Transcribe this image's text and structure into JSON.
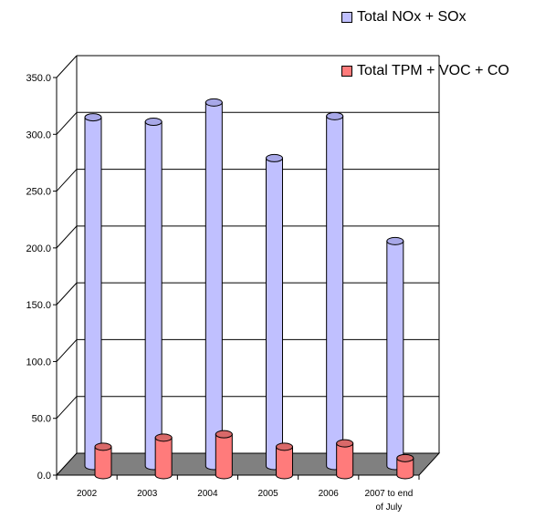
{
  "chart_data": {
    "type": "bar",
    "categories": [
      "2002",
      "2003",
      "2004",
      "2005",
      "2006",
      "2007 to end of July"
    ],
    "series": [
      {
        "name": "Total NOx + SOx",
        "values": [
          307,
          303,
          320,
          271,
          308,
          198
        ],
        "color": "#c0c0ff"
      },
      {
        "name": "Total TPM + VOC + CO",
        "values": [
          25,
          33,
          36,
          25,
          28,
          15
        ],
        "color": "#ff7b7b"
      }
    ],
    "ylim": [
      0,
      350
    ],
    "yticks": [
      "0.0",
      "50.0",
      "100.0",
      "150.0",
      "200.0",
      "250.0",
      "300.0",
      "350.0"
    ],
    "grid": true,
    "legend_position": "top-right",
    "three_d": true
  }
}
